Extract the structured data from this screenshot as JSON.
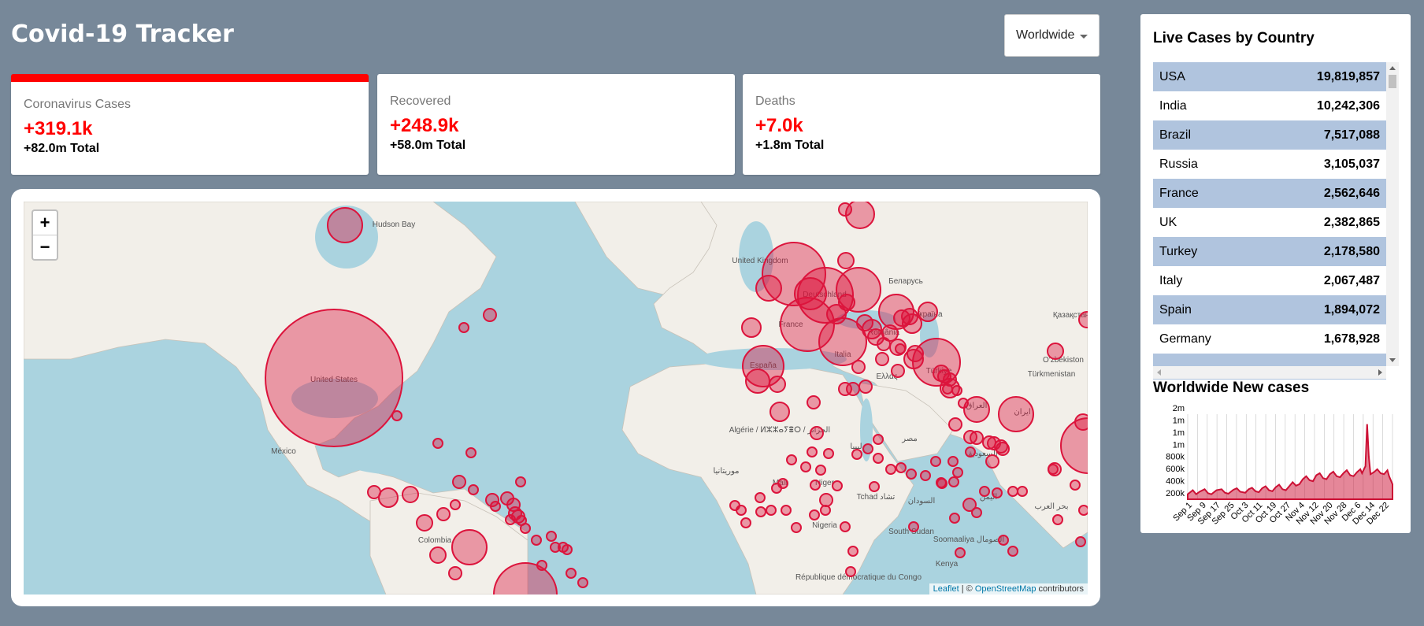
{
  "app": {
    "title": "Covid-19 Tracker"
  },
  "region_select": {
    "selected": "Worldwide"
  },
  "stats": [
    {
      "label": "Coronavirus Cases",
      "new": "+319.1k",
      "total": "+82.0m Total"
    },
    {
      "label": "Recovered",
      "new": "+248.9k",
      "total": "+58.0m Total"
    },
    {
      "label": "Deaths",
      "new": "+7.0k",
      "total": "+1.8m Total"
    }
  ],
  "map": {
    "zoom_in": "+",
    "zoom_out": "−",
    "attribution": {
      "leaflet": "Leaflet",
      "separator": " | © ",
      "osm": "OpenStreetMap",
      "suffix": " contributors"
    },
    "labels": [
      "Hudson Bay",
      "United States",
      "México",
      "Colombia",
      "United Kingdom",
      "France",
      "España",
      "Deutschland",
      "Italia",
      "România",
      "Україна",
      "Türkiye",
      "Algérie / ⵍⵣⵣⴰⵢⴻⵔ / الجزائر",
      "Mali",
      "Niger",
      "Tchad تشاد",
      "Nigeria",
      "South Sudan",
      "République démocratique du Congo",
      "Kenya",
      "Soomaaliya الصومال",
      "ایران",
      "Қазақстан",
      "O'zbekiston",
      "Türkmenistan",
      "العراق",
      "السعودية",
      "السودان",
      "ليبيا",
      "مصر",
      "Беларусь",
      "Ελλάς",
      "موريتانيا",
      "اليمن",
      "بحر العرب"
    ],
    "marker_color": "#dc143c"
  },
  "sidebar": {
    "title": "Live Cases by Country",
    "countries": [
      {
        "name": "USA",
        "cases": "19,819,857"
      },
      {
        "name": "India",
        "cases": "10,242,306"
      },
      {
        "name": "Brazil",
        "cases": "7,517,088"
      },
      {
        "name": "Russia",
        "cases": "3,105,037"
      },
      {
        "name": "France",
        "cases": "2,562,646"
      },
      {
        "name": "UK",
        "cases": "2,382,865"
      },
      {
        "name": "Turkey",
        "cases": "2,178,580"
      },
      {
        "name": "Italy",
        "cases": "2,067,487"
      },
      {
        "name": "Spain",
        "cases": "1,894,072"
      },
      {
        "name": "Germany",
        "cases": "1,678,928"
      }
    ],
    "chart_title": "Worldwide New cases"
  },
  "chart_data": {
    "type": "area",
    "title": "Worldwide New cases",
    "y_tick_labels": [
      "2m",
      "1m",
      "1m",
      "1m",
      "800k",
      "600k",
      "400k",
      "200k"
    ],
    "x_tick_labels": [
      "Sep 1",
      "Sep 9",
      "Sep 17",
      "Sep 25",
      "Oct 3",
      "Oct 11",
      "Oct 19",
      "Oct 27",
      "Nov 4",
      "Nov 12",
      "Nov 20",
      "Nov 28",
      "Dec 6",
      "Dec 14",
      "Dec 22"
    ],
    "ylim": [
      100000,
      1800000
    ],
    "x_range": [
      "2020-08-31",
      "2020-12-30"
    ],
    "series": [
      {
        "values": [
          [
            0,
            200000
          ],
          [
            3,
            280000
          ],
          [
            5,
            200000
          ],
          [
            7,
            250000
          ],
          [
            10,
            300000
          ],
          [
            12,
            220000
          ],
          [
            14,
            200000
          ],
          [
            17,
            280000
          ],
          [
            20,
            300000
          ],
          [
            22,
            230000
          ],
          [
            24,
            210000
          ],
          [
            27,
            290000
          ],
          [
            29,
            320000
          ],
          [
            31,
            250000
          ],
          [
            34,
            230000
          ],
          [
            36,
            300000
          ],
          [
            38,
            330000
          ],
          [
            40,
            260000
          ],
          [
            42,
            240000
          ],
          [
            44,
            320000
          ],
          [
            46,
            360000
          ],
          [
            48,
            280000
          ],
          [
            50,
            260000
          ],
          [
            52,
            340000
          ],
          [
            54,
            390000
          ],
          [
            56,
            300000
          ],
          [
            58,
            280000
          ],
          [
            60,
            360000
          ],
          [
            62,
            440000
          ],
          [
            64,
            370000
          ],
          [
            66,
            400000
          ],
          [
            68,
            500000
          ],
          [
            70,
            560000
          ],
          [
            72,
            480000
          ],
          [
            74,
            460000
          ],
          [
            76,
            580000
          ],
          [
            78,
            620000
          ],
          [
            80,
            520000
          ],
          [
            82,
            500000
          ],
          [
            84,
            600000
          ],
          [
            86,
            650000
          ],
          [
            88,
            560000
          ],
          [
            90,
            540000
          ],
          [
            92,
            620000
          ],
          [
            94,
            680000
          ],
          [
            96,
            580000
          ],
          [
            98,
            560000
          ],
          [
            100,
            640000
          ],
          [
            102,
            700000
          ],
          [
            103,
            620000
          ],
          [
            105,
            760000
          ],
          [
            106,
            1600000
          ],
          [
            107,
            950000
          ],
          [
            108,
            600000
          ],
          [
            110,
            640000
          ],
          [
            112,
            700000
          ],
          [
            114,
            620000
          ],
          [
            116,
            600000
          ],
          [
            118,
            680000
          ],
          [
            119,
            560000
          ],
          [
            121,
            400000
          ]
        ],
        "color": "#cc1034"
      }
    ]
  }
}
